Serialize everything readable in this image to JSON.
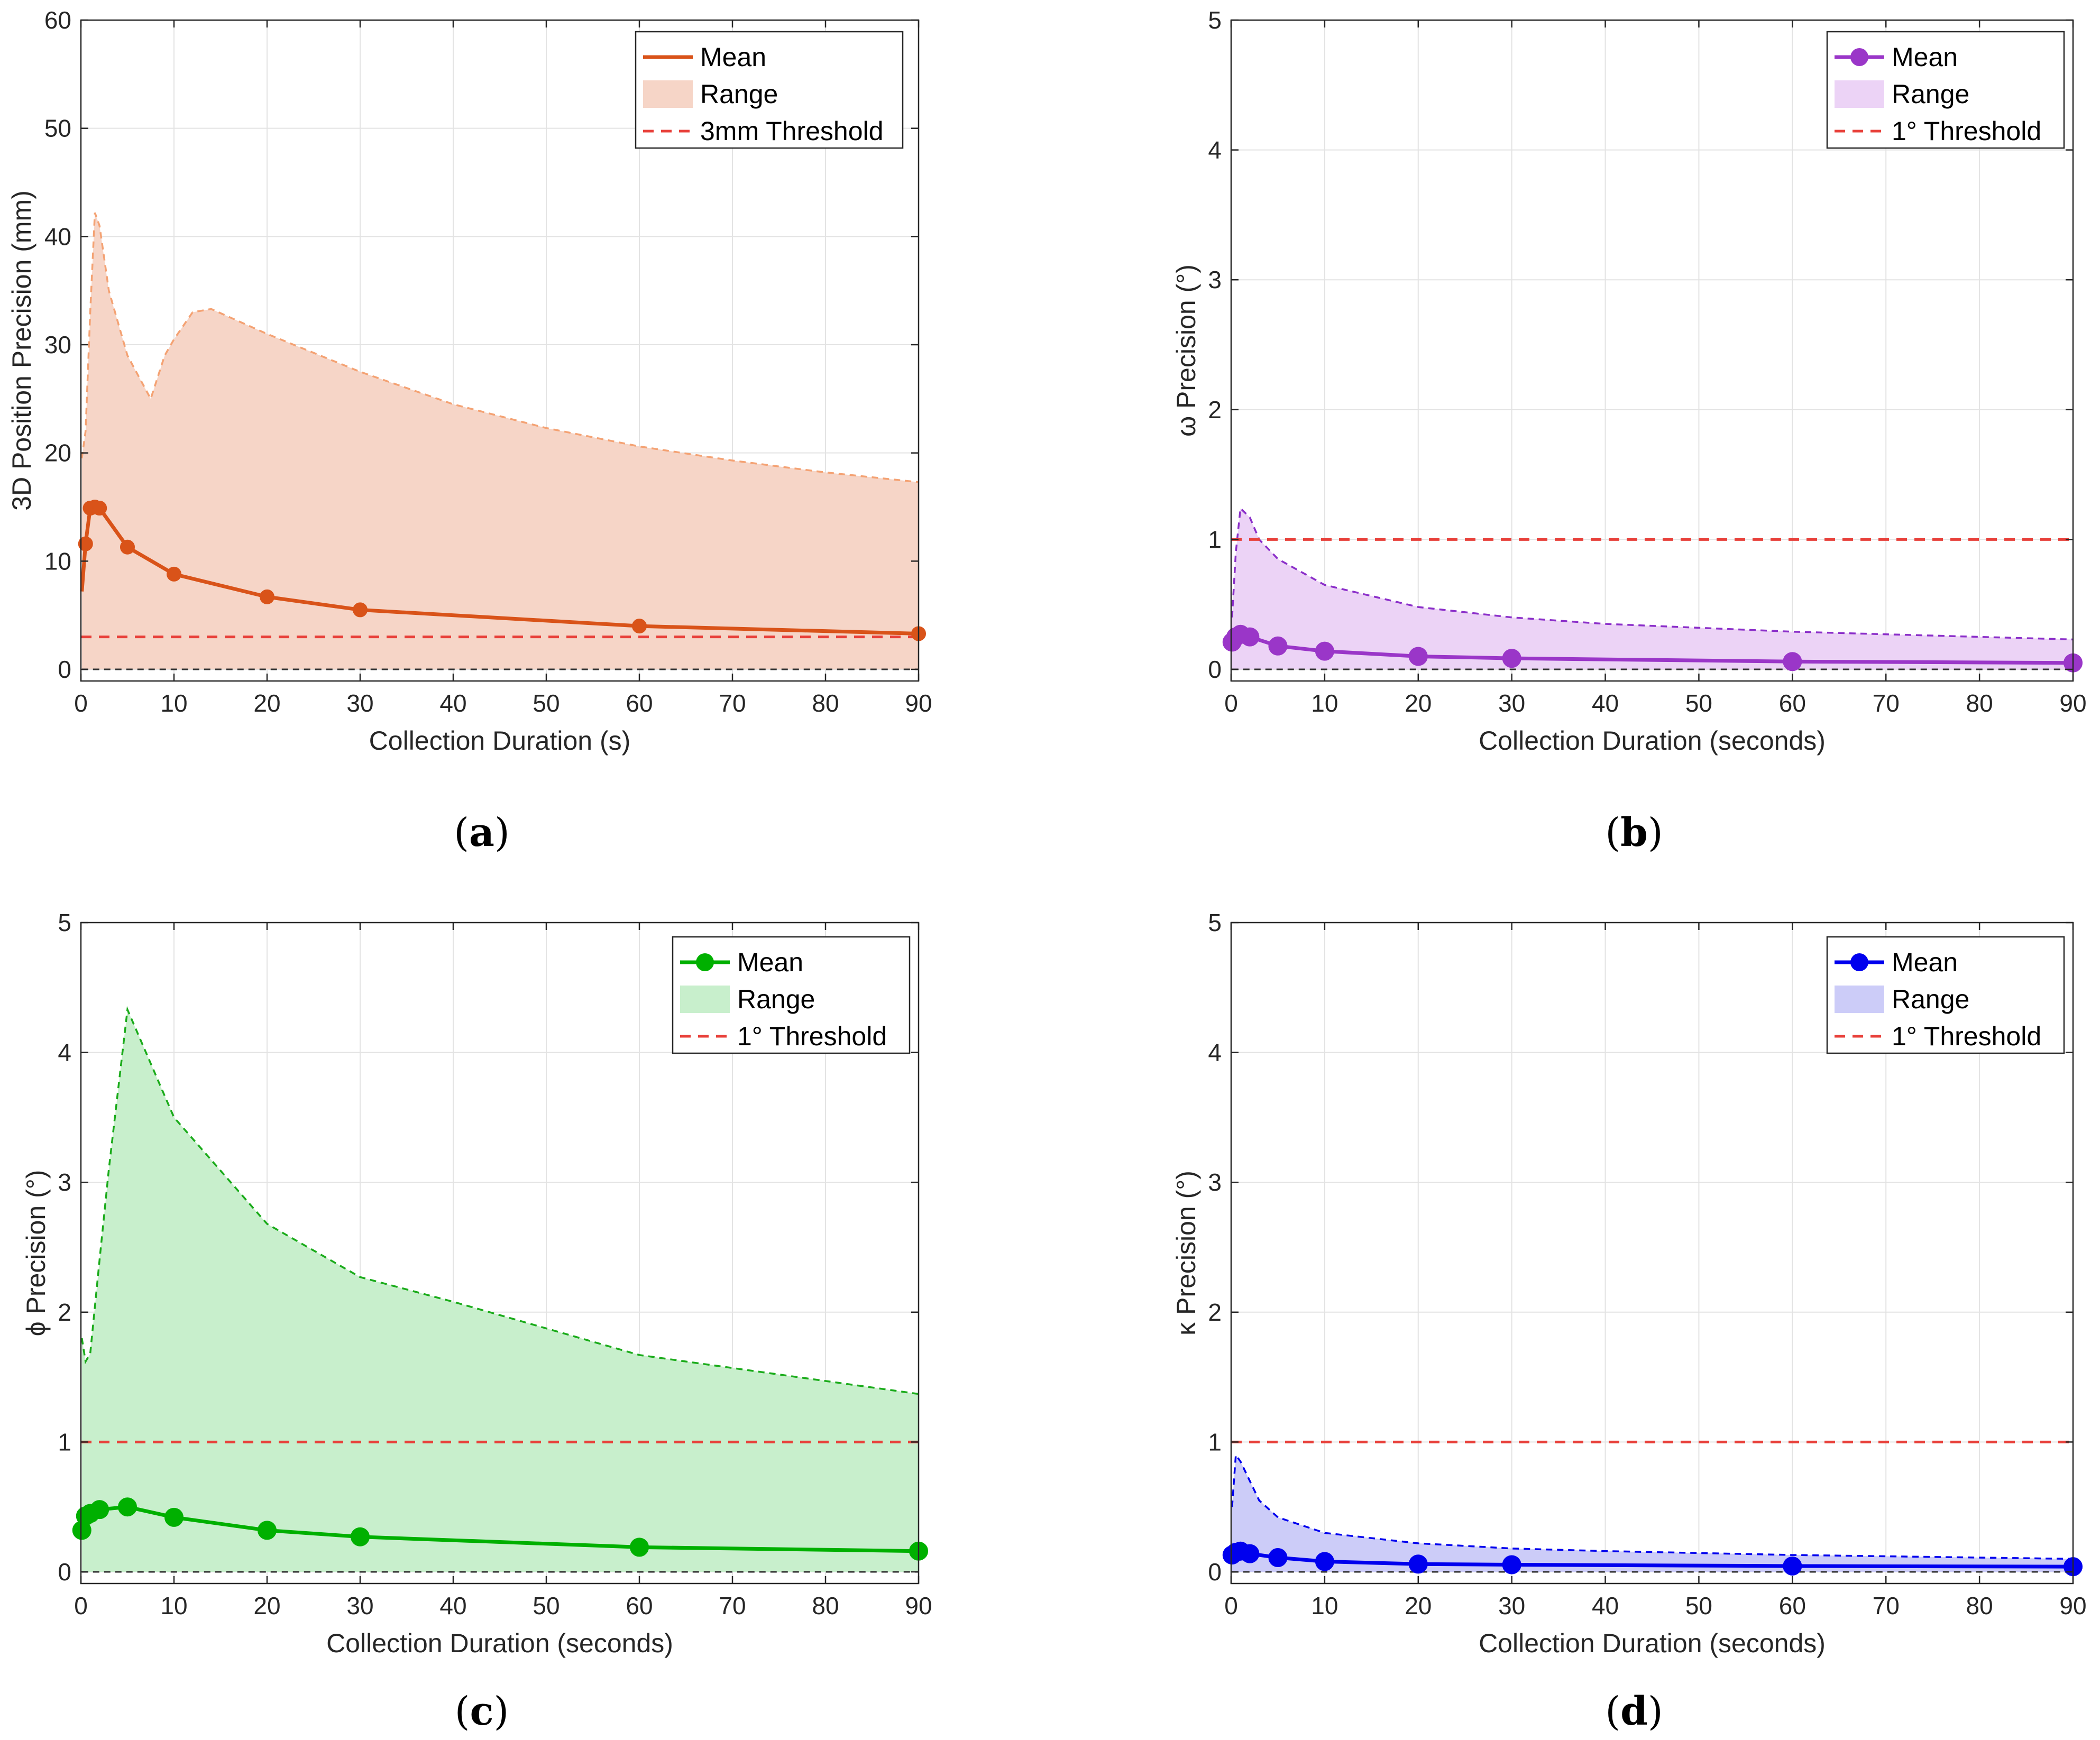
{
  "chart_data": [
    {
      "type": "line",
      "panel": "a",
      "title": "",
      "xlabel": "Collection Duration (s)",
      "ylabel": "3D Position Precision (mm)",
      "xlim": [
        0,
        90
      ],
      "ylim": [
        0,
        60
      ],
      "xticks": [
        0,
        10,
        20,
        30,
        40,
        50,
        60,
        70,
        80,
        90
      ],
      "yticks": [
        0,
        10,
        20,
        30,
        40,
        50,
        60
      ],
      "grid": true,
      "legend_position": "top-right",
      "legend": [
        "Mean",
        "Range",
        "3mm Threshold"
      ],
      "colors": {
        "mean": "#d95319",
        "range_fill": "#f6d5c7",
        "range_edge": "#f4a273",
        "threshold": "#e8403a"
      },
      "mean": {
        "x": [
          0.1,
          0.5,
          1,
          1.5,
          2,
          5,
          10,
          20,
          30,
          60,
          90
        ],
        "y": [
          7.2,
          11.6,
          14.9,
          15.0,
          14.9,
          11.3,
          8.8,
          6.7,
          5.5,
          4.0,
          3.3
        ]
      },
      "mean_markers_x": [
        0.5,
        1,
        1.5,
        2,
        5,
        10,
        20,
        30,
        60,
        90
      ],
      "range_upper": {
        "x": [
          0.1,
          0.5,
          1,
          1.5,
          2,
          3,
          5,
          7.5,
          9,
          10,
          12,
          14,
          20,
          30,
          40,
          50,
          60,
          70,
          80,
          90
        ],
        "y": [
          19.5,
          22,
          33,
          42.2,
          41,
          35,
          29,
          25,
          29,
          30.5,
          33,
          33.3,
          31,
          27.5,
          24.5,
          22.3,
          20.6,
          19.3,
          18.2,
          17.3
        ]
      },
      "range_lower": {
        "x": [
          0.1,
          90
        ],
        "y": [
          0,
          0
        ]
      },
      "threshold": 3
    },
    {
      "type": "line",
      "panel": "b",
      "title": "",
      "xlabel": "Collection Duration (seconds)",
      "ylabel": "ω Precision (°)",
      "xlim": [
        0,
        90
      ],
      "ylim": [
        0,
        5
      ],
      "xticks": [
        0,
        10,
        20,
        30,
        40,
        50,
        60,
        70,
        80,
        90
      ],
      "yticks": [
        0,
        1,
        2,
        3,
        4,
        5
      ],
      "grid": true,
      "legend_position": "top-right",
      "legend": [
        "Mean",
        "Range",
        "1° Threshold"
      ],
      "colors": {
        "mean": "#9a36c8",
        "range_fill": "#ecd3f6",
        "range_edge": "#8b2fc9",
        "threshold": "#e8403a"
      },
      "mean": {
        "x": [
          0.1,
          0.5,
          1,
          2,
          5,
          10,
          20,
          30,
          60,
          90
        ],
        "y": [
          0.21,
          0.25,
          0.27,
          0.25,
          0.18,
          0.14,
          0.1,
          0.085,
          0.06,
          0.05
        ]
      },
      "mean_markers_x": [
        0.1,
        0.5,
        1,
        2,
        5,
        10,
        20,
        30,
        60,
        90
      ],
      "range_upper": {
        "x": [
          0.1,
          0.5,
          1,
          2,
          3,
          5,
          10,
          20,
          30,
          40,
          60,
          90
        ],
        "y": [
          0.4,
          0.9,
          1.24,
          1.17,
          1.0,
          0.85,
          0.65,
          0.48,
          0.4,
          0.35,
          0.29,
          0.23
        ]
      },
      "range_lower": {
        "x": [
          0.1,
          90
        ],
        "y": [
          0,
          0
        ]
      },
      "threshold": 1
    },
    {
      "type": "line",
      "panel": "c",
      "title": "",
      "xlabel": "Collection Duration (seconds)",
      "ylabel": "ϕ Precision (°)",
      "xlim": [
        0,
        90
      ],
      "ylim": [
        0,
        5
      ],
      "xticks": [
        0,
        10,
        20,
        30,
        40,
        50,
        60,
        70,
        80,
        90
      ],
      "yticks": [
        0,
        1,
        2,
        3,
        4,
        5
      ],
      "grid": true,
      "legend_position": "top-right",
      "legend": [
        "Mean",
        "Range",
        "1° Threshold"
      ],
      "colors": {
        "mean": "#00b000",
        "range_fill": "#c8efcc",
        "range_edge": "#1aab1a",
        "threshold": "#e8403a"
      },
      "mean": {
        "x": [
          0.1,
          0.5,
          1,
          2,
          5,
          10,
          20,
          30,
          60,
          90
        ],
        "y": [
          0.32,
          0.43,
          0.45,
          0.48,
          0.5,
          0.42,
          0.32,
          0.27,
          0.19,
          0.16
        ]
      },
      "mean_markers_x": [
        0.1,
        0.5,
        1,
        2,
        5,
        10,
        20,
        30,
        60,
        90
      ],
      "range_upper": {
        "x": [
          0.1,
          0.5,
          1,
          2,
          3,
          5,
          10,
          20,
          30,
          40,
          60,
          70,
          90
        ],
        "y": [
          1.8,
          1.62,
          1.68,
          2.4,
          3.1,
          4.33,
          3.5,
          2.68,
          2.27,
          2.08,
          1.67,
          1.57,
          1.37
        ]
      },
      "range_lower": {
        "x": [
          0.1,
          90
        ],
        "y": [
          0,
          0
        ]
      },
      "threshold": 1
    },
    {
      "type": "line",
      "panel": "d",
      "title": "",
      "xlabel": "Collection Duration (seconds)",
      "ylabel": "κ Precision (°)",
      "xlim": [
        0,
        90
      ],
      "ylim": [
        0,
        5
      ],
      "xticks": [
        0,
        10,
        20,
        30,
        40,
        50,
        60,
        70,
        80,
        90
      ],
      "yticks": [
        0,
        1,
        2,
        3,
        4,
        5
      ],
      "grid": true,
      "legend_position": "top-right",
      "legend": [
        "Mean",
        "Range",
        "1° Threshold"
      ],
      "colors": {
        "mean": "#0000ee",
        "range_fill": "#ccccf8",
        "range_edge": "#0000ee",
        "threshold": "#e8403a"
      },
      "mean": {
        "x": [
          0.1,
          0.5,
          1,
          2,
          5,
          10,
          20,
          30,
          60,
          90
        ],
        "y": [
          0.13,
          0.15,
          0.16,
          0.14,
          0.11,
          0.08,
          0.06,
          0.055,
          0.045,
          0.04
        ]
      },
      "mean_markers_x": [
        0.1,
        0.5,
        1,
        2,
        5,
        10,
        20,
        30,
        60,
        90
      ],
      "range_upper": {
        "x": [
          0.1,
          0.5,
          1,
          2,
          3,
          5,
          10,
          20,
          30,
          40,
          60,
          90
        ],
        "y": [
          0.5,
          0.9,
          0.85,
          0.7,
          0.55,
          0.42,
          0.3,
          0.22,
          0.18,
          0.16,
          0.13,
          0.1
        ]
      },
      "range_lower": {
        "x": [
          0.1,
          90
        ],
        "y": [
          0,
          0
        ]
      },
      "threshold": 1
    }
  ],
  "panel_labels": [
    "(a)",
    "(b)",
    "(c)",
    "(d)"
  ]
}
